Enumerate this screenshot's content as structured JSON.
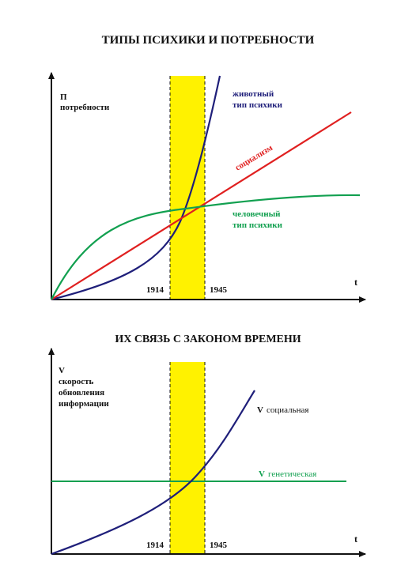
{
  "title_top": "ТИПЫ ПСИХИКИ И ПОТРЕБНОСТИ",
  "title_bottom": "ИХ СВЯЗЬ С ЗАКОНОМ ВРЕМЕНИ",
  "colors": {
    "blue": "#1f1f7a",
    "red": "#e02020",
    "green": "#12a050",
    "highlight": "#fff200",
    "axis": "#111111"
  },
  "top": {
    "y_label_line1": "П",
    "y_label_line2": "потребности",
    "x_label": "t",
    "year_start": "1914",
    "year_end": "1945",
    "animal_line1": "животный",
    "animal_line2": "тип психики",
    "socialism": "социализм",
    "human_line1": "человечный",
    "human_line2": "тип психики"
  },
  "bottom": {
    "y_label_line1": "V",
    "y_label_line2": "скорость",
    "y_label_line3": "обновления",
    "y_label_line4": "информации",
    "x_label": "t",
    "year_start": "1914",
    "year_end": "1945",
    "social_v": "V",
    "social_word": "социальная",
    "genetic_v": "V",
    "genetic_word": "генетическая"
  }
}
